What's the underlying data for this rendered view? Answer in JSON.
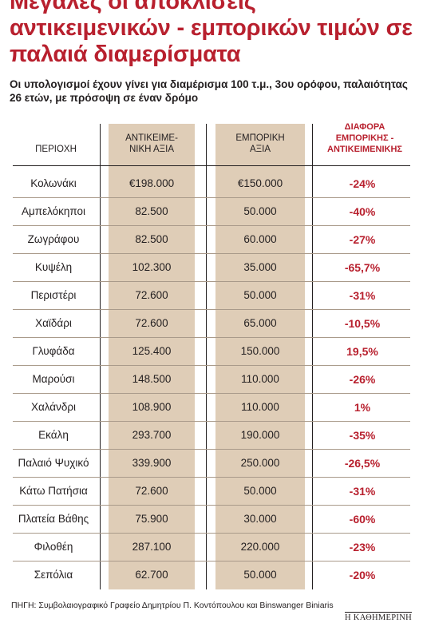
{
  "title": "Μεγάλες οι αποκλίσεις αντικειμενικών - εμπορικών τιμών σε παλαιά διαμερίσματα",
  "subtitle": "Οι υπολογισμοί έχουν γίνει για διαμέρισμα 100 τ.μ., 3ου ορόφου, παλαιότητας 26 ετών, με πρόσοψη σε έναν δρόμο",
  "colors": {
    "accent_red": "#b8202e",
    "column_fill": "#dfcdb7"
  },
  "chart_data": {
    "type": "table",
    "columns": [
      "ΠΕΡΙΟΧΗ",
      "ΑΝΤΙΚΕΙΜΕ-ΝΙΚΗ ΑΞΙΑ",
      "ΕΜΠΟΡΙΚΗ ΑΞΙΑ",
      "ΔΙΑΦΟΡΑ ΕΜΠΟΡΙΚΗΣ - ΑΝΤΙΚΕΙΜΕΝΙΚΗΣ"
    ],
    "header_lines": {
      "area": [
        "ΠΕΡΙΟΧΗ"
      ],
      "objective": [
        "ΑΝΤΙΚΕΙΜΕ-",
        "ΝΙΚΗ ΑΞΙΑ"
      ],
      "commercial": [
        "ΕΜΠΟΡΙΚΗ",
        "ΑΞΙΑ"
      ],
      "difference": [
        "ΔΙΑΦΟΡΑ",
        "ΕΜΠΟΡΙΚΗΣ -",
        "ΑΝΤΙΚΕΙΜΕΝΙΚΗΣ"
      ]
    },
    "rows": [
      {
        "area": "Κολωνάκι",
        "objective": "€198.000",
        "commercial": "€150.000",
        "difference": "-24%"
      },
      {
        "area": "Αμπελόκηποι",
        "objective": "82.500",
        "commercial": "50.000",
        "difference": "-40%"
      },
      {
        "area": "Ζωγράφου",
        "objective": "82.500",
        "commercial": "60.000",
        "difference": "-27%"
      },
      {
        "area": "Κυψέλη",
        "objective": "102.300",
        "commercial": "35.000",
        "difference": "-65,7%"
      },
      {
        "area": "Περιστέρι",
        "objective": "72.600",
        "commercial": "50.000",
        "difference": "-31%"
      },
      {
        "area": "Χαϊδάρι",
        "objective": "72.600",
        "commercial": "65.000",
        "difference": "-10,5%"
      },
      {
        "area": "Γλυφάδα",
        "objective": "125.400",
        "commercial": "150.000",
        "difference": "19,5%"
      },
      {
        "area": "Μαρούσι",
        "objective": "148.500",
        "commercial": "110.000",
        "difference": "-26%"
      },
      {
        "area": "Χαλάνδρι",
        "objective": "108.900",
        "commercial": "110.000",
        "difference": "1%"
      },
      {
        "area": "Εκάλη",
        "objective": "293.700",
        "commercial": "190.000",
        "difference": "-35%"
      },
      {
        "area": "Παλαιό Ψυχικό",
        "objective": "339.900",
        "commercial": "250.000",
        "difference": "-26,5%"
      },
      {
        "area": "Κάτω Πατήσια",
        "objective": "72.600",
        "commercial": "50.000",
        "difference": "-31%"
      },
      {
        "area": "Πλατεία Βάθης",
        "objective": "75.900",
        "commercial": "30.000",
        "difference": "-60%"
      },
      {
        "area": "Φιλοθέη",
        "objective": "287.100",
        "commercial": "220.000",
        "difference": "-23%"
      },
      {
        "area": "Σεπόλια",
        "objective": "62.700",
        "commercial": "50.000",
        "difference": "-20%"
      }
    ]
  },
  "source": "ΠΗΓΗ: Συμβολαιογραφικό Γραφείο Δημητρίου Π. Κοντόπουλου και Binswanger Biniaris",
  "brand": "Η ΚΑΘΗΜΕΡΙΝΗ"
}
